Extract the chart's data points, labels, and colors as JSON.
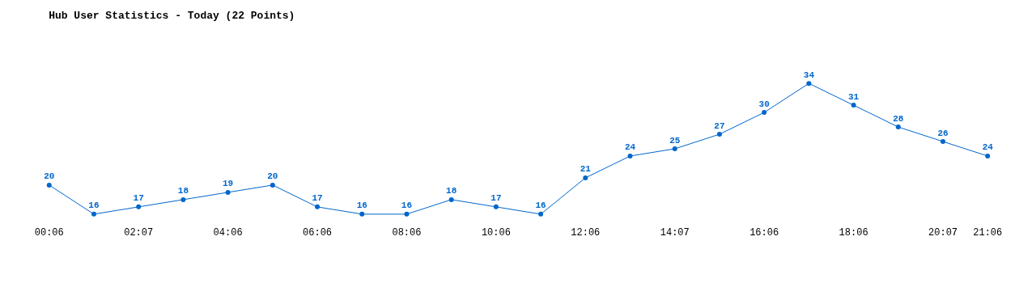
{
  "chart_data": {
    "type": "line",
    "title": "Hub User Statistics - Today (22 Points)",
    "categories": [
      "00:06",
      null,
      "02:07",
      null,
      "04:06",
      null,
      "06:06",
      null,
      "08:06",
      null,
      "10:06",
      null,
      "12:06",
      null,
      "14:07",
      null,
      "16:06",
      null,
      "18:06",
      null,
      "20:07",
      "21:06"
    ],
    "series": [
      {
        "color": "#0066cc",
        "values": [
          20,
          16,
          17,
          18,
          19,
          20,
          17,
          16,
          16,
          18,
          17,
          16,
          21,
          24,
          25,
          27,
          30,
          34,
          31,
          28,
          26,
          24
        ]
      }
    ],
    "data_labels": true,
    "grid": false,
    "marker": "circle",
    "line_style": "solid"
  }
}
